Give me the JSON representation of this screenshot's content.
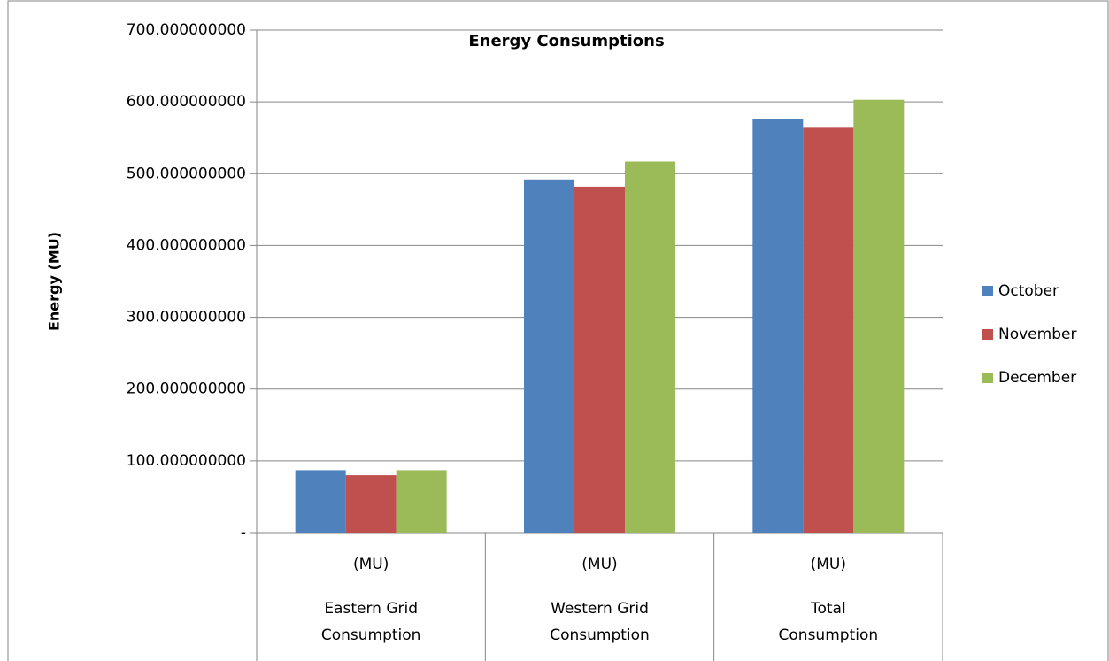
{
  "chart_data": {
    "type": "bar",
    "title": "Energy Consumptions",
    "y_label": "Energy (MU)",
    "categories": [
      "Eastern Grid Consumption",
      "Western Grid Consumption",
      "Total Consumption"
    ],
    "category_units": [
      "(MU)",
      "(MU)",
      "(MU)"
    ],
    "series": [
      {
        "name": "October",
        "color": "#4f81bd",
        "values": [
          87,
          492,
          576
        ]
      },
      {
        "name": "November",
        "color": "#c0504d",
        "values": [
          80,
          482,
          564
        ]
      },
      {
        "name": "December",
        "color": "#9bbb59",
        "values": [
          87,
          517,
          603
        ]
      }
    ],
    "ylim": [
      0,
      700
    ],
    "yticks": [
      {
        "value": 0,
        "label": "-"
      },
      {
        "value": 100,
        "label": "100.000000000"
      },
      {
        "value": 200,
        "label": "200.000000000"
      },
      {
        "value": 300,
        "label": "300.000000000"
      },
      {
        "value": 400,
        "label": "400.000000000"
      },
      {
        "value": 500,
        "label": "500.000000000"
      },
      {
        "value": 600,
        "label": "600.000000000"
      },
      {
        "value": 700,
        "label": "700.000000000"
      }
    ],
    "grid": true,
    "legend": "right"
  }
}
